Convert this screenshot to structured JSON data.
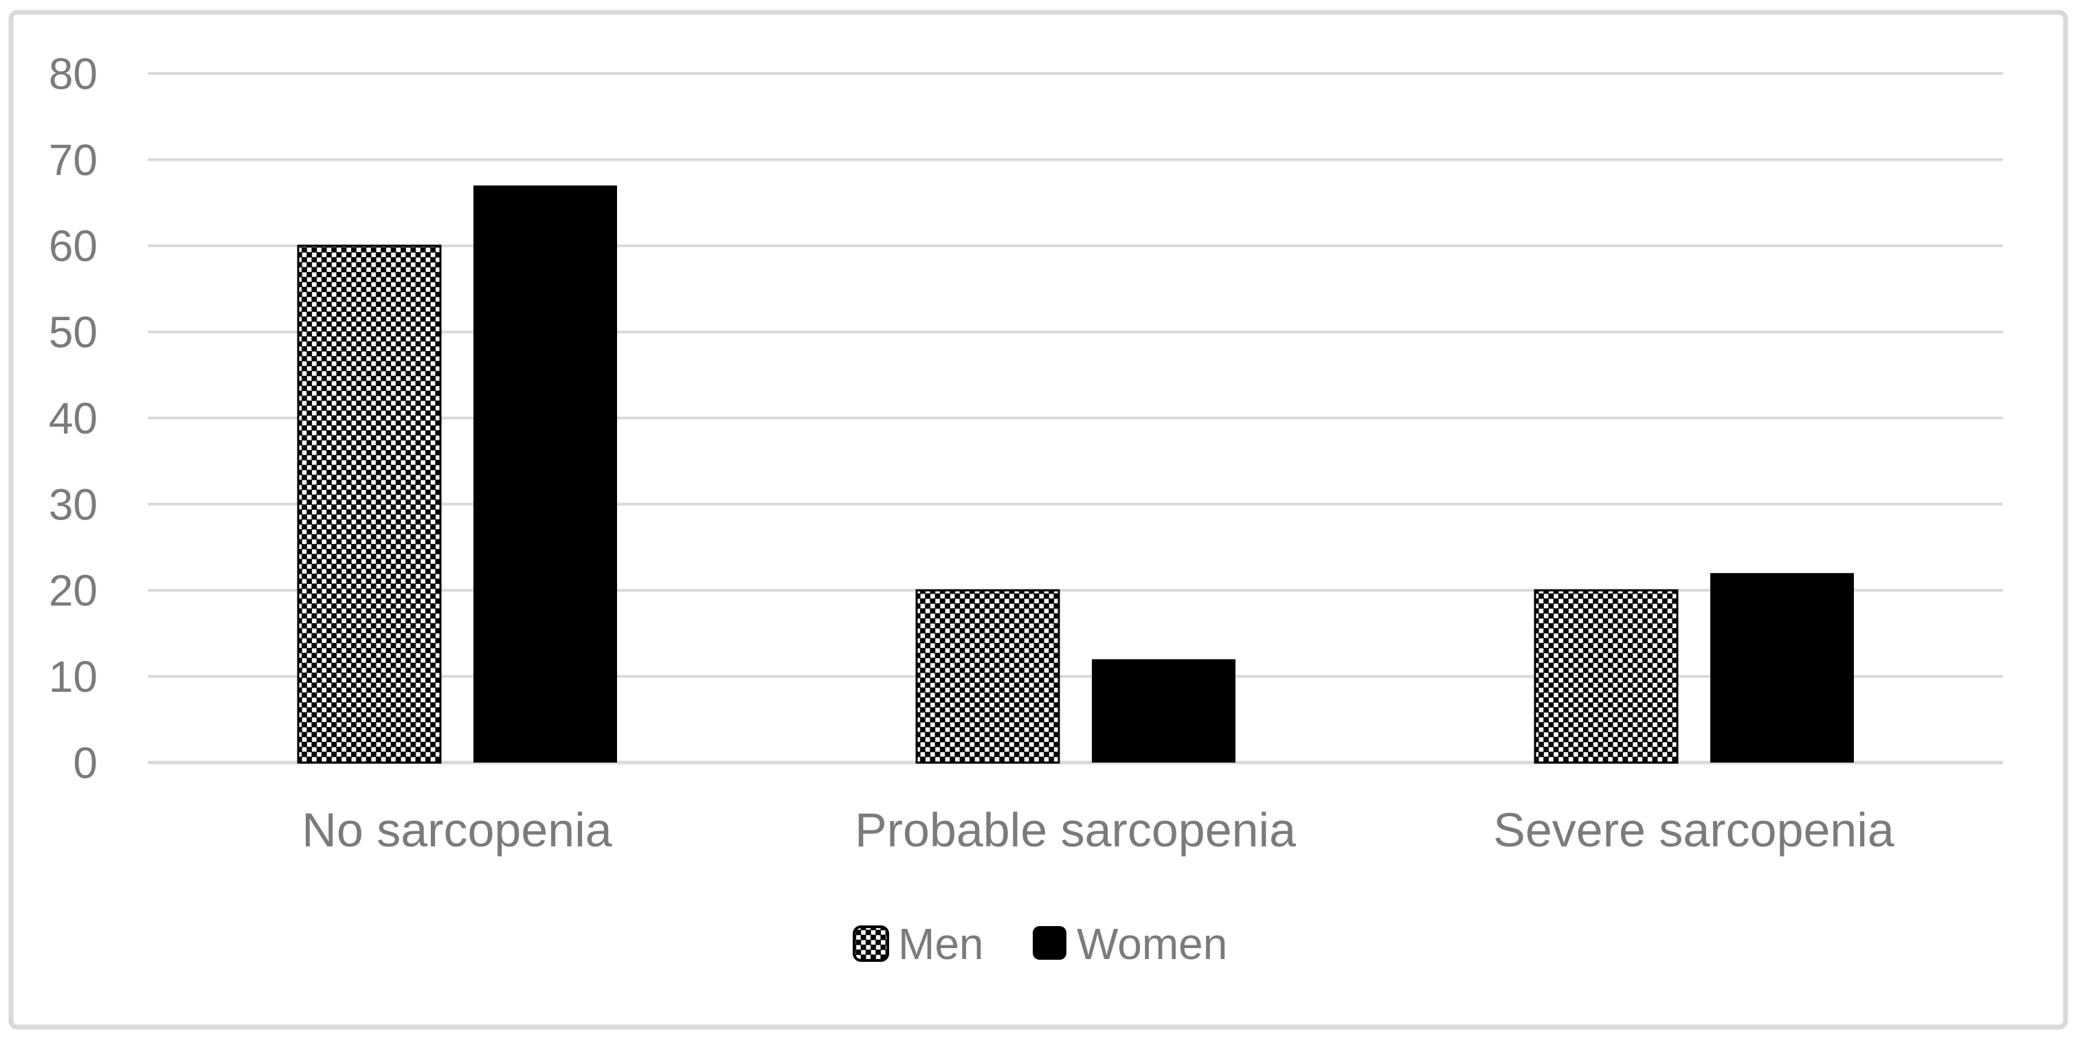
{
  "chart_data": {
    "type": "bar",
    "title": "",
    "xlabel": "",
    "ylabel": "",
    "categories": [
      "No sarcopenia",
      "Probable sarcopenia",
      "Severe sarcopenia"
    ],
    "series": [
      {
        "name": "Men",
        "values": [
          60,
          20,
          20
        ],
        "fill": "black-white-checkerboard-pattern"
      },
      {
        "name": "Women",
        "values": [
          67,
          12,
          22
        ],
        "fill": "solid-black"
      }
    ],
    "ylim": [
      0,
      80
    ],
    "yticks": [
      0,
      10,
      20,
      30,
      40,
      50,
      60,
      70,
      80
    ],
    "grid": true,
    "gridlines": "horizontal",
    "legend_position": "bottom-center",
    "colors": {
      "bar_solid": "#000000",
      "pattern_background": "#000000",
      "pattern_dot": "#ffffff",
      "gridline": "#d9d9d9",
      "frame_border": "#d9d9d9",
      "label_text": "#7b7b7b",
      "background": "#ffffff"
    }
  }
}
